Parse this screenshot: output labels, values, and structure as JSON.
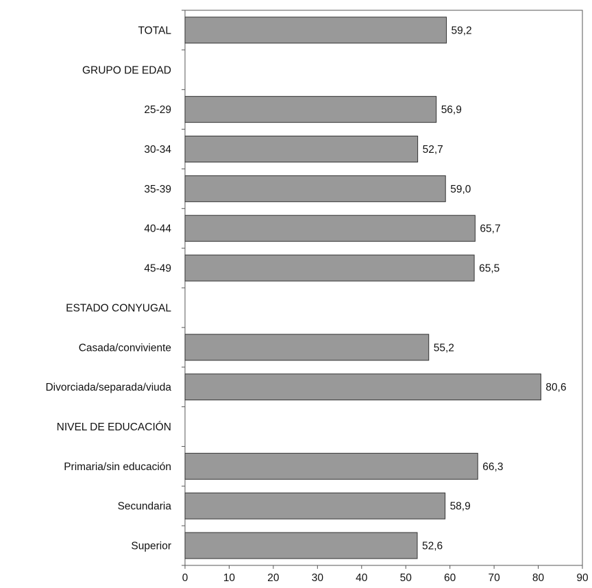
{
  "chart_data": {
    "type": "bar",
    "orientation": "horizontal",
    "categories": [
      "TOTAL",
      "GRUPO DE EDAD",
      "25-29",
      "30-34",
      "35-39",
      "40-44",
      "45-49",
      "ESTADO CONYUGAL",
      "Casada/conviviente",
      "Divorciada/separada/viuda",
      "NIVEL DE EDUCACIÓN",
      "Primaria/sin educación",
      "Secundaria",
      "Superior"
    ],
    "values": [
      59.2,
      null,
      56.9,
      52.7,
      59.0,
      65.7,
      65.5,
      null,
      55.2,
      80.6,
      null,
      66.3,
      58.9,
      52.6
    ],
    "value_labels": [
      "59,2",
      "",
      "56,9",
      "52,7",
      "59,0",
      "65,7",
      "65,5",
      "",
      "55,2",
      "80,6",
      "",
      "66,3",
      "58,9",
      "52,6"
    ],
    "xlim": [
      0,
      90
    ],
    "xticks": [
      0,
      10,
      20,
      30,
      40,
      50,
      60,
      70,
      80,
      90
    ],
    "title": "",
    "xlabel": "",
    "ylabel": "",
    "grid": false,
    "bar_color": "#999999"
  }
}
